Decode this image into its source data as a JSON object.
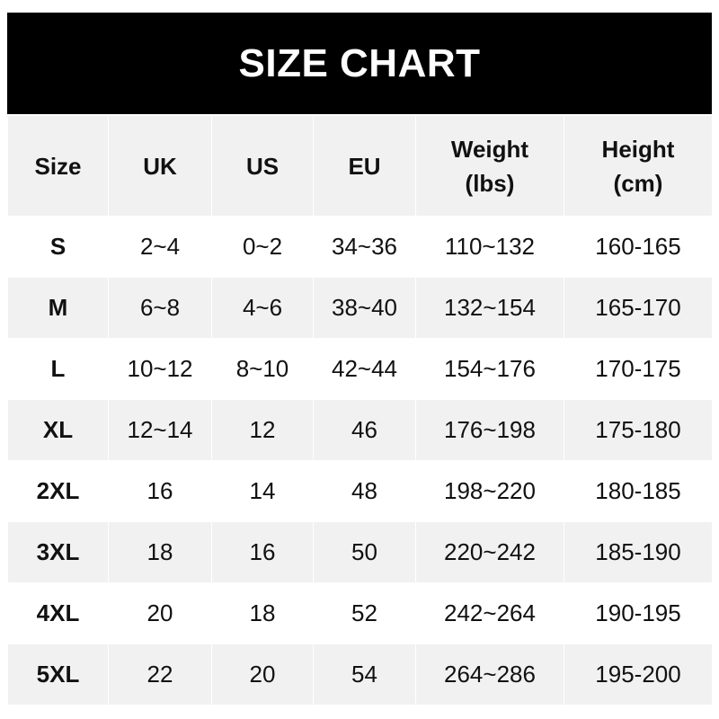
{
  "title": "SIZE CHART",
  "chart_data": {
    "type": "table",
    "title": "SIZE CHART",
    "columns": [
      "Size",
      "UK",
      "US",
      "EU",
      "Weight\n(lbs)",
      "Height\n(cm)"
    ],
    "rows": [
      [
        "S",
        "2~4",
        "0~2",
        "34~36",
        "110~132",
        "160-165"
      ],
      [
        "M",
        "6~8",
        "4~6",
        "38~40",
        "132~154",
        "165-170"
      ],
      [
        "L",
        "10~12",
        "8~10",
        "42~44",
        "154~176",
        "170-175"
      ],
      [
        "XL",
        "12~14",
        "12",
        "46",
        "176~198",
        "175-180"
      ],
      [
        "2XL",
        "16",
        "14",
        "48",
        "198~220",
        "180-185"
      ],
      [
        "3XL",
        "18",
        "16",
        "50",
        "220~242",
        "185-190"
      ],
      [
        "4XL",
        "20",
        "18",
        "52",
        "242~264",
        "190-195"
      ],
      [
        "5XL",
        "22",
        "20",
        "54",
        "264~286",
        "195-200"
      ]
    ]
  },
  "colors": {
    "banner": "#000000",
    "header_bg": "#f1f1f1",
    "stripe_bg": "#f1f1f1",
    "text": "#111111"
  }
}
